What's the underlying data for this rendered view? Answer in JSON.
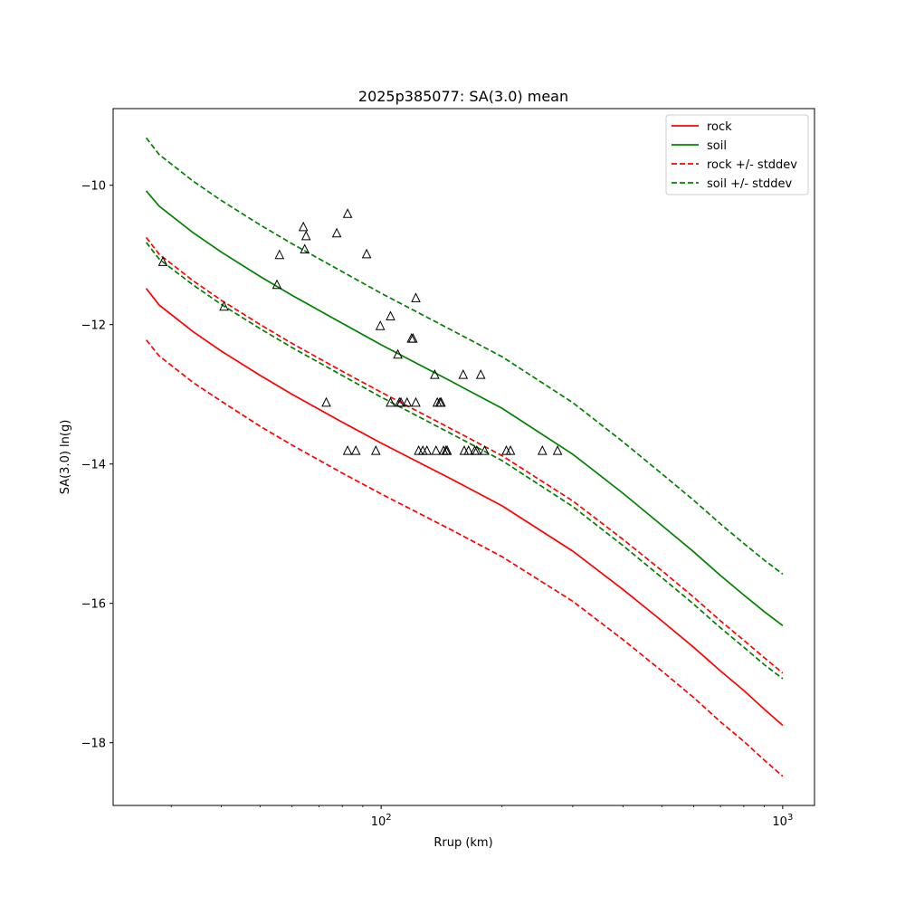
{
  "chart_data": {
    "type": "line",
    "title": "2025p385077: SA(3.0) mean",
    "xlabel": "Rrup (km)",
    "ylabel": "SA(3.0) ln(g)",
    "x_scale": "log",
    "xlim": [
      21.5,
      1200
    ],
    "ylim": [
      -18.9,
      -8.9
    ],
    "grid": false,
    "legend_position": "top-right",
    "x_ticks": [
      {
        "value": 100,
        "base": "10",
        "exp": "2"
      },
      {
        "value": 1000,
        "base": "10",
        "exp": "3"
      }
    ],
    "y_ticks": [
      -10,
      -12,
      -14,
      -16,
      -18
    ],
    "series": [
      {
        "name": "rock",
        "color": "#ff0000",
        "dash": "solid",
        "x": [
          26,
          28,
          34,
          40,
          50,
          60,
          80,
          100,
          150,
          200,
          300,
          400,
          500,
          600,
          700,
          800,
          900,
          1000
        ],
        "y": [
          -11.48,
          -11.72,
          -12.1,
          -12.38,
          -12.73,
          -13.0,
          -13.4,
          -13.7,
          -14.22,
          -14.6,
          -15.25,
          -15.8,
          -16.25,
          -16.63,
          -16.97,
          -17.25,
          -17.52,
          -17.75
        ]
      },
      {
        "name": "soil",
        "color": "#008000",
        "dash": "solid",
        "x": [
          26,
          28,
          34,
          40,
          50,
          60,
          80,
          100,
          150,
          200,
          300,
          400,
          500,
          600,
          700,
          800,
          900,
          1000
        ],
        "y": [
          -10.08,
          -10.3,
          -10.68,
          -10.96,
          -11.31,
          -11.58,
          -11.98,
          -12.29,
          -12.82,
          -13.2,
          -13.86,
          -14.42,
          -14.88,
          -15.26,
          -15.6,
          -15.88,
          -16.12,
          -16.32
        ]
      },
      {
        "name": "rock +/- stddev",
        "color": "#ff0000",
        "dash": "dashed",
        "x": [
          26,
          28,
          34,
          40,
          50,
          60,
          80,
          100,
          150,
          200,
          300,
          400,
          500,
          600,
          700,
          800,
          900,
          1000
        ],
        "y": [
          -10.75,
          -10.99,
          -11.37,
          -11.65,
          -12.0,
          -12.27,
          -12.67,
          -12.97,
          -13.5,
          -13.88,
          -14.53,
          -15.08,
          -15.53,
          -15.91,
          -16.25,
          -16.53,
          -16.78,
          -17.0
        ]
      },
      {
        "name": "",
        "color": "#ff0000",
        "dash": "dashed",
        "x": [
          26,
          28,
          34,
          40,
          50,
          60,
          80,
          100,
          150,
          200,
          300,
          400,
          500,
          600,
          700,
          800,
          900,
          1000
        ],
        "y": [
          -12.22,
          -12.45,
          -12.83,
          -13.1,
          -13.46,
          -13.73,
          -14.13,
          -14.43,
          -14.95,
          -15.33,
          -15.97,
          -16.52,
          -16.97,
          -17.35,
          -17.7,
          -17.98,
          -18.25,
          -18.48
        ]
      },
      {
        "name": "soil +/- stddev",
        "color": "#008000",
        "dash": "dashed",
        "x": [
          26,
          28,
          34,
          40,
          50,
          60,
          80,
          100,
          150,
          200,
          300,
          400,
          500,
          600,
          700,
          800,
          900,
          1000
        ],
        "y": [
          -9.32,
          -9.56,
          -9.94,
          -10.22,
          -10.57,
          -10.84,
          -11.24,
          -11.55,
          -12.08,
          -12.46,
          -13.12,
          -13.68,
          -14.14,
          -14.52,
          -14.86,
          -15.14,
          -15.38,
          -15.58
        ]
      },
      {
        "name": "",
        "color": "#008000",
        "dash": "dashed",
        "x": [
          26,
          28,
          34,
          40,
          50,
          60,
          80,
          100,
          150,
          200,
          300,
          400,
          500,
          600,
          700,
          800,
          900,
          1000
        ],
        "y": [
          -10.82,
          -11.06,
          -11.43,
          -11.71,
          -12.06,
          -12.33,
          -12.73,
          -13.04,
          -13.57,
          -13.95,
          -14.61,
          -15.17,
          -15.63,
          -16.01,
          -16.35,
          -16.63,
          -16.88,
          -17.08
        ]
      }
    ],
    "observations": {
      "marker": "triangle",
      "color": "#000000",
      "x": [
        28.6,
        40.6,
        55,
        55.8,
        64,
        64.5,
        65,
        73,
        77.5,
        82.5,
        82.5,
        86.5,
        92,
        97,
        99.5,
        105.5,
        105.5,
        110,
        111,
        112,
        116,
        119,
        120,
        122,
        122,
        124,
        127,
        130,
        136,
        137,
        138,
        140,
        141,
        143,
        145,
        146,
        160,
        161,
        165,
        171,
        173,
        177,
        181,
        205,
        210,
        252,
        275
      ],
      "y": [
        -11.1,
        -11.74,
        -11.43,
        -11.0,
        -10.6,
        -10.92,
        -10.73,
        -13.12,
        -10.69,
        -10.41,
        -13.81,
        -13.81,
        -10.99,
        -13.81,
        -12.02,
        -11.88,
        -13.12,
        -12.43,
        -13.12,
        -13.12,
        -13.12,
        -12.2,
        -12.2,
        -11.62,
        -13.12,
        -13.81,
        -13.81,
        -13.81,
        -12.72,
        -13.81,
        -13.12,
        -13.12,
        -13.12,
        -13.81,
        -13.81,
        -13.81,
        -12.72,
        -13.81,
        -13.81,
        -13.81,
        -13.81,
        -12.72,
        -13.81,
        -13.81,
        -13.81,
        -13.81,
        -13.81
      ]
    }
  }
}
